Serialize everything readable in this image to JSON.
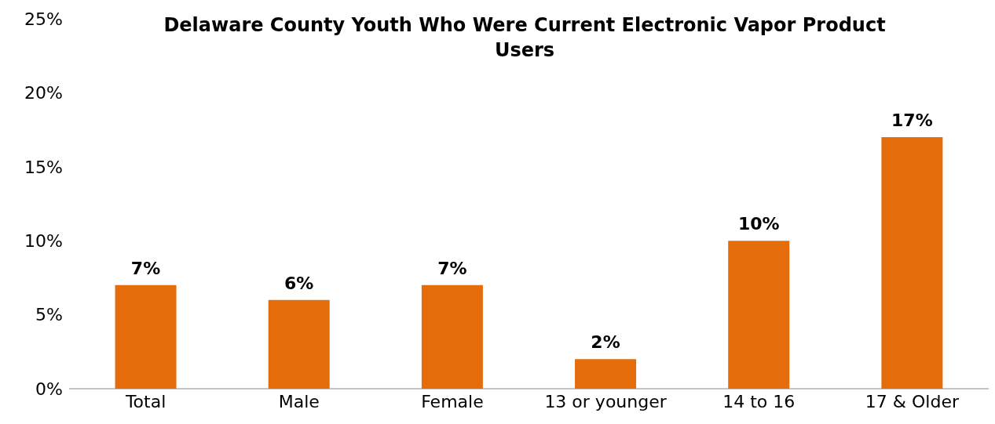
{
  "chart_data": {
    "type": "bar",
    "title": "Delaware County Youth Who Were Current Electronic Vapor Product Users",
    "categories": [
      "Total",
      "Male",
      "Female",
      "13 or younger",
      "14 to 16",
      "17 & Older"
    ],
    "values": [
      7,
      6,
      7,
      2,
      10,
      17
    ],
    "value_labels": [
      "7%",
      "6%",
      "7%",
      "2%",
      "10%",
      "17%"
    ],
    "color": "#e46c0a",
    "ylim": [
      0,
      25
    ],
    "yticks": [
      {
        "value": 0,
        "label": "0%"
      },
      {
        "value": 5,
        "label": "5%"
      },
      {
        "value": 10,
        "label": "10%"
      },
      {
        "value": 15,
        "label": "15%"
      },
      {
        "value": 20,
        "label": "20%"
      },
      {
        "value": 25,
        "label": "25%"
      }
    ],
    "grid": false,
    "legend": false
  }
}
